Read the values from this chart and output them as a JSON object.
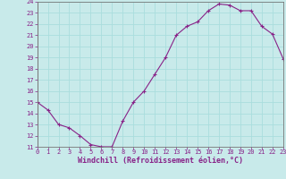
{
  "x": [
    0,
    1,
    2,
    3,
    4,
    5,
    6,
    7,
    8,
    9,
    10,
    11,
    12,
    13,
    14,
    15,
    16,
    17,
    18,
    19,
    20,
    21,
    22,
    23
  ],
  "y": [
    15,
    14.3,
    13.0,
    12.7,
    12.0,
    11.2,
    11.0,
    11.0,
    13.3,
    15.0,
    16.0,
    17.5,
    19.0,
    21.0,
    21.8,
    22.2,
    23.2,
    23.8,
    23.7,
    23.2,
    23.2,
    21.8,
    21.1,
    18.9
  ],
  "xlim": [
    0,
    23
  ],
  "ylim": [
    11,
    24
  ],
  "yticks": [
    11,
    12,
    13,
    14,
    15,
    16,
    17,
    18,
    19,
    20,
    21,
    22,
    23,
    24
  ],
  "xticks": [
    0,
    1,
    2,
    3,
    4,
    5,
    6,
    7,
    8,
    9,
    10,
    11,
    12,
    13,
    14,
    15,
    16,
    17,
    18,
    19,
    20,
    21,
    22,
    23
  ],
  "xlabel": "Windchill (Refroidissement éolien,°C)",
  "line_color": "#882288",
  "marker_color": "#882288",
  "bg_color": "#c8eaea",
  "grid_color": "#aadddd",
  "tick_label_color": "#882288",
  "axis_label_color": "#882288",
  "font_size_tick": 5.0,
  "font_size_xlabel": 6.0
}
